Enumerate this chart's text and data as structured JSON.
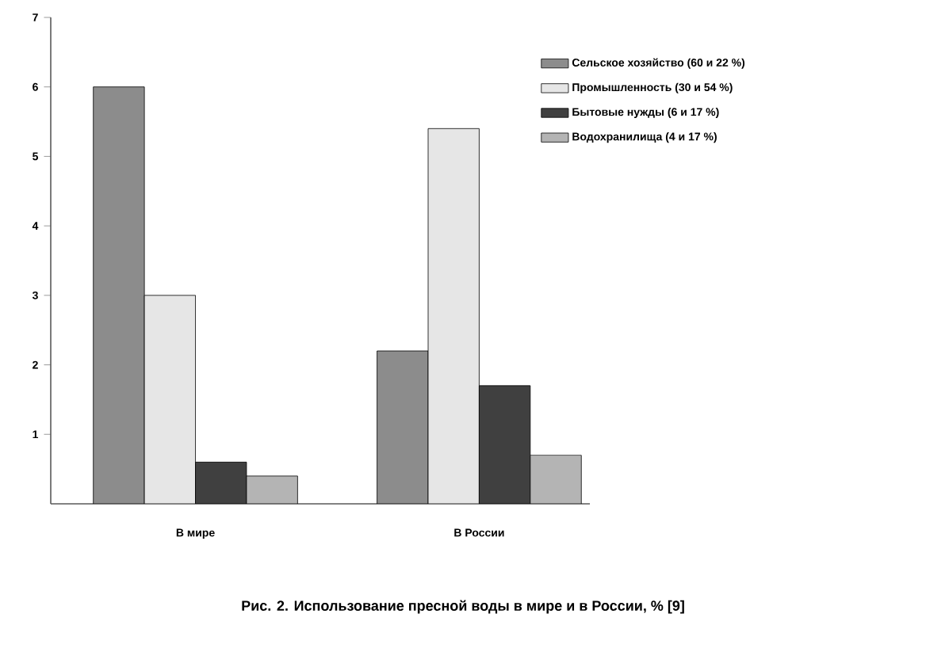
{
  "chart_data": {
    "type": "bar",
    "title": "Рис. 2. Использование пресной воды в мире и в России, % [9]",
    "categories": [
      "В мире",
      "В России"
    ],
    "series": [
      {
        "name": "Сельское хозяйство (60 и 22 %)",
        "color": "#8c8c8c",
        "values": [
          6,
          2.2
        ]
      },
      {
        "name": "Промышленность (30 и 54 %)",
        "color": "#e6e6e6",
        "values": [
          3,
          5.4
        ]
      },
      {
        "name": "Бытовые нужды (6 и 17 %)",
        "color": "#404040",
        "values": [
          0.6,
          1.7
        ]
      },
      {
        "name": "Водохранилища (4 и 17 %)",
        "color": "#b4b4b4",
        "values": [
          0.4,
          0.7
        ]
      }
    ],
    "ylim": [
      0,
      7
    ],
    "yticks": [
      1,
      2,
      3,
      4,
      5,
      6,
      7
    ],
    "legend": "top right"
  }
}
